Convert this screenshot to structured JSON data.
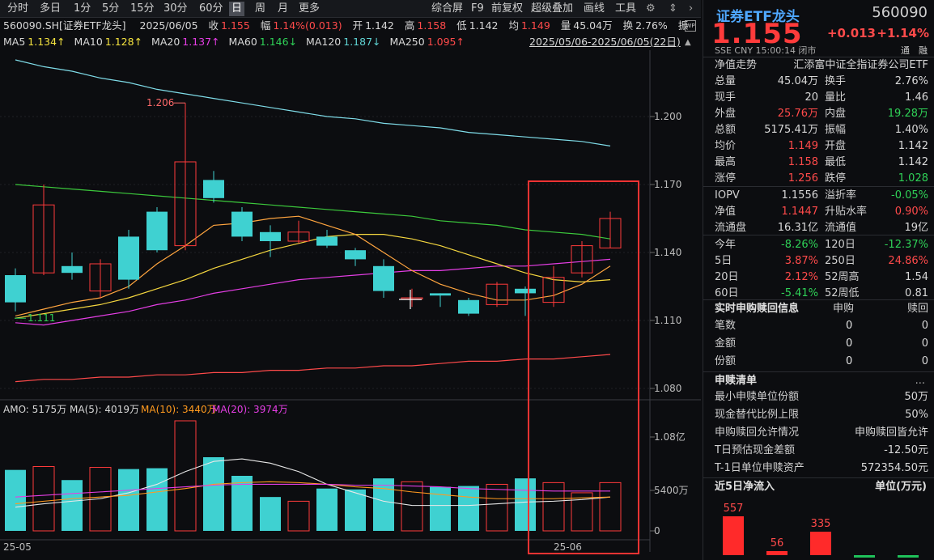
{
  "toolbar": {
    "periods": [
      "分时",
      "多日",
      "1分",
      "5分",
      "15分",
      "30分",
      "60分",
      "日",
      "周",
      "月",
      "更多"
    ],
    "selected": "日",
    "tools": [
      "综合屏",
      "F9",
      "前复权",
      "超级叠加",
      "画线",
      "工具"
    ],
    "settings_icon": "gear-icon",
    "arrow_icon": "chevron-right-icon"
  },
  "header": {
    "code_name": "560090.SH[证券ETF龙头]",
    "date": "2025/06/05",
    "close_label": "收",
    "close": "1.155",
    "amp_label": "幅",
    "amp": "1.14%(0.013)",
    "open_label": "开",
    "open": "1.142",
    "high_label": "高",
    "high": "1.158",
    "low_label": "低",
    "low": "1.142",
    "avg_label": "均",
    "avg": "1.149",
    "vol_label": "量",
    "vol": "45.04万",
    "turn_label": "换",
    "turn": "2.76%",
    "zhen_label": "振",
    "range": "2025/05/06-2025/06/05(22日)"
  },
  "ma": {
    "ma5_label": "MA5",
    "ma5": "1.134↑",
    "ma10_label": "MA10",
    "ma10": "1.128↑",
    "ma20_label": "MA20",
    "ma20": "1.137↑",
    "ma60_label": "MA60",
    "ma60": "1.146↓",
    "ma120_label": "MA120",
    "ma120": "1.187↓",
    "ma250_label": "MA250",
    "ma250": "1.095↑"
  },
  "volinfo": {
    "amo": "AMO: 5175万",
    "ma5": "MA(5): 4019万",
    "ma10": "MA(10): 3440万",
    "ma20": "MA(20): 3974万"
  },
  "chart_data": {
    "type": "candlestick",
    "price_ticks": [
      "1.200",
      "1.170",
      "1.140",
      "1.110",
      "1.080"
    ],
    "price_tick_values": [
      1.2,
      1.17,
      1.14,
      1.11,
      1.08
    ],
    "vol_ticks": [
      "1.08亿",
      "5400万",
      "0"
    ],
    "date_labels": [
      "25-05",
      "25-06"
    ],
    "annotations": [
      {
        "text": "1.206",
        "value": 1.206
      },
      {
        "text": "1.111",
        "value": 1.111
      }
    ],
    "candles": [
      {
        "o": 1.13,
        "c": 1.118,
        "h": 1.133,
        "l": 1.114
      },
      {
        "o": 1.131,
        "c": 1.161,
        "h": 1.17,
        "l": 1.13
      },
      {
        "o": 1.134,
        "c": 1.131,
        "h": 1.14,
        "l": 1.128
      },
      {
        "o": 1.123,
        "c": 1.135,
        "h": 1.137,
        "l": 1.12
      },
      {
        "o": 1.147,
        "c": 1.128,
        "h": 1.15,
        "l": 1.124
      },
      {
        "o": 1.158,
        "c": 1.141,
        "h": 1.16,
        "l": 1.14
      },
      {
        "o": 1.143,
        "c": 1.18,
        "h": 1.206,
        "l": 1.141
      },
      {
        "o": 1.172,
        "c": 1.164,
        "h": 1.176,
        "l": 1.162
      },
      {
        "o": 1.158,
        "c": 1.147,
        "h": 1.16,
        "l": 1.145
      },
      {
        "o": 1.149,
        "c": 1.145,
        "h": 1.152,
        "l": 1.138
      },
      {
        "o": 1.145,
        "c": 1.149,
        "h": 1.154,
        "l": 1.144
      },
      {
        "o": 1.147,
        "c": 1.143,
        "h": 1.15,
        "l": 1.142
      },
      {
        "o": 1.141,
        "c": 1.137,
        "h": 1.142,
        "l": 1.134
      },
      {
        "o": 1.134,
        "c": 1.123,
        "h": 1.137,
        "l": 1.12
      },
      {
        "o": 1.12,
        "c": 1.12,
        "h": 1.124,
        "l": 1.116
      },
      {
        "o": 1.122,
        "c": 1.121,
        "h": 1.122,
        "l": 1.116
      },
      {
        "o": 1.119,
        "c": 1.113,
        "h": 1.12,
        "l": 1.112
      },
      {
        "o": 1.117,
        "c": 1.126,
        "h": 1.127,
        "l": 1.116
      },
      {
        "o": 1.124,
        "c": 1.122,
        "h": 1.125,
        "l": 1.112
      },
      {
        "o": 1.118,
        "c": 1.129,
        "h": 1.134,
        "l": 1.116
      },
      {
        "o": 1.131,
        "c": 1.143,
        "h": 1.145,
        "l": 1.129
      },
      {
        "o": 1.142,
        "c": 1.155,
        "h": 1.158,
        "l": 1.142
      }
    ],
    "volumes": [
      0.72,
      0.76,
      0.6,
      0.75,
      0.73,
      0.74,
      1.3,
      0.87,
      0.65,
      0.4,
      0.35,
      0.5,
      0.49,
      0.62,
      0.58,
      0.52,
      0.53,
      0.55,
      0.62,
      0.57,
      0.45,
      0.57
    ],
    "ma5": [
      1.112,
      1.115,
      1.118,
      1.12,
      1.125,
      1.135,
      1.143,
      1.152,
      1.153,
      1.155,
      1.156,
      1.152,
      1.148,
      1.14,
      1.132,
      1.126,
      1.122,
      1.119,
      1.119,
      1.121,
      1.126,
      1.134
    ],
    "ma10": [
      1.111,
      1.113,
      1.115,
      1.117,
      1.12,
      1.124,
      1.128,
      1.133,
      1.137,
      1.141,
      1.144,
      1.147,
      1.148,
      1.148,
      1.146,
      1.143,
      1.139,
      1.135,
      1.131,
      1.128,
      1.127,
      1.128
    ],
    "ma20": [
      1.109,
      1.108,
      1.11,
      1.112,
      1.114,
      1.117,
      1.119,
      1.122,
      1.124,
      1.126,
      1.128,
      1.129,
      1.13,
      1.131,
      1.132,
      1.132,
      1.133,
      1.134,
      1.134,
      1.135,
      1.136,
      1.137
    ],
    "ma60": [
      1.17,
      1.169,
      1.168,
      1.167,
      1.166,
      1.165,
      1.164,
      1.163,
      1.162,
      1.161,
      1.16,
      1.159,
      1.158,
      1.157,
      1.156,
      1.154,
      1.153,
      1.152,
      1.15,
      1.149,
      1.148,
      1.146
    ],
    "ma120": [
      1.225,
      1.222,
      1.22,
      1.217,
      1.215,
      1.212,
      1.21,
      1.208,
      1.206,
      1.204,
      1.202,
      1.2,
      1.199,
      1.197,
      1.196,
      1.195,
      1.193,
      1.192,
      1.191,
      1.19,
      1.189,
      1.187
    ],
    "ma250": [
      1.083,
      1.084,
      1.084,
      1.085,
      1.085,
      1.086,
      1.086,
      1.087,
      1.087,
      1.088,
      1.088,
      1.089,
      1.089,
      1.09,
      1.09,
      1.091,
      1.092,
      1.092,
      1.093,
      1.093,
      1.094,
      1.095
    ]
  },
  "panel": {
    "title": "证券ETF龙头",
    "code": "560090",
    "price": "1.155",
    "chg": "+0.013",
    "pct": "+1.14%",
    "meta": "SSE  CNY  15:00:14  闭市",
    "tong": "通",
    "bi": "融",
    "nav_label": "净值走势",
    "fund_name": "汇添富中证全指证券公司ETF",
    "rows": [
      [
        "总量",
        "45.04万",
        "w",
        "换手",
        "2.76%",
        "w"
      ],
      [
        "现手",
        "20",
        "w",
        "量比",
        "1.46",
        "w"
      ],
      [
        "外盘",
        "25.76万",
        "r",
        "内盘",
        "19.28万",
        "g"
      ],
      [
        "总额",
        "5175.41万",
        "w",
        "振幅",
        "1.40%",
        "w"
      ],
      [
        "均价",
        "1.149",
        "r",
        "开盘",
        "1.142",
        "w"
      ],
      [
        "最高",
        "1.158",
        "r",
        "最低",
        "1.142",
        "w"
      ],
      [
        "涨停",
        "1.256",
        "r",
        "跌停",
        "1.028",
        "g"
      ],
      [
        "IOPV",
        "1.1556",
        "w",
        "溢折率",
        "-0.05%",
        "g"
      ],
      [
        "净值",
        "1.1447",
        "r",
        "升贴水率",
        "0.90%",
        "r"
      ],
      [
        "流通盘",
        "16.31亿",
        "w",
        "流通值",
        "19亿",
        "w"
      ],
      [
        "今年",
        "-8.26%",
        "g",
        "120日",
        "-12.37%",
        "g"
      ],
      [
        "5日",
        "3.87%",
        "r",
        "250日",
        "24.86%",
        "r"
      ],
      [
        "20日",
        "2.12%",
        "r",
        "52周高",
        "1.54",
        "w"
      ],
      [
        "60日",
        "-5.41%",
        "g",
        "52周低",
        "0.81",
        "w"
      ]
    ],
    "sg_title": "实时申购赎回信息",
    "sg_col1": "申购",
    "sg_col2": "赎回",
    "sg_rows": [
      [
        "笔数",
        "0",
        "0"
      ],
      [
        "金额",
        "0",
        "0"
      ],
      [
        "份额",
        "0",
        "0"
      ]
    ],
    "list_title": "申赎清单",
    "list_more": "...",
    "list_rows": [
      [
        "最小申赎单位份额",
        "50万"
      ],
      [
        "现金替代比例上限",
        "50%"
      ],
      [
        "申购赎回允许情况",
        "申购赎回皆允许"
      ],
      [
        "T日预估现金差额",
        "-12.50元"
      ],
      [
        "T-1日单位申赎资产",
        "572354.50元"
      ]
    ],
    "flow_title": "近5日净流入",
    "flow_unit": "单位(万元)",
    "flow": [
      {
        "label": "557",
        "value": 557
      },
      {
        "label": "56",
        "value": 56
      },
      {
        "label": "335",
        "value": 335
      },
      {
        "label": "",
        "value": -20
      },
      {
        "label": "",
        "value": -20
      }
    ]
  }
}
